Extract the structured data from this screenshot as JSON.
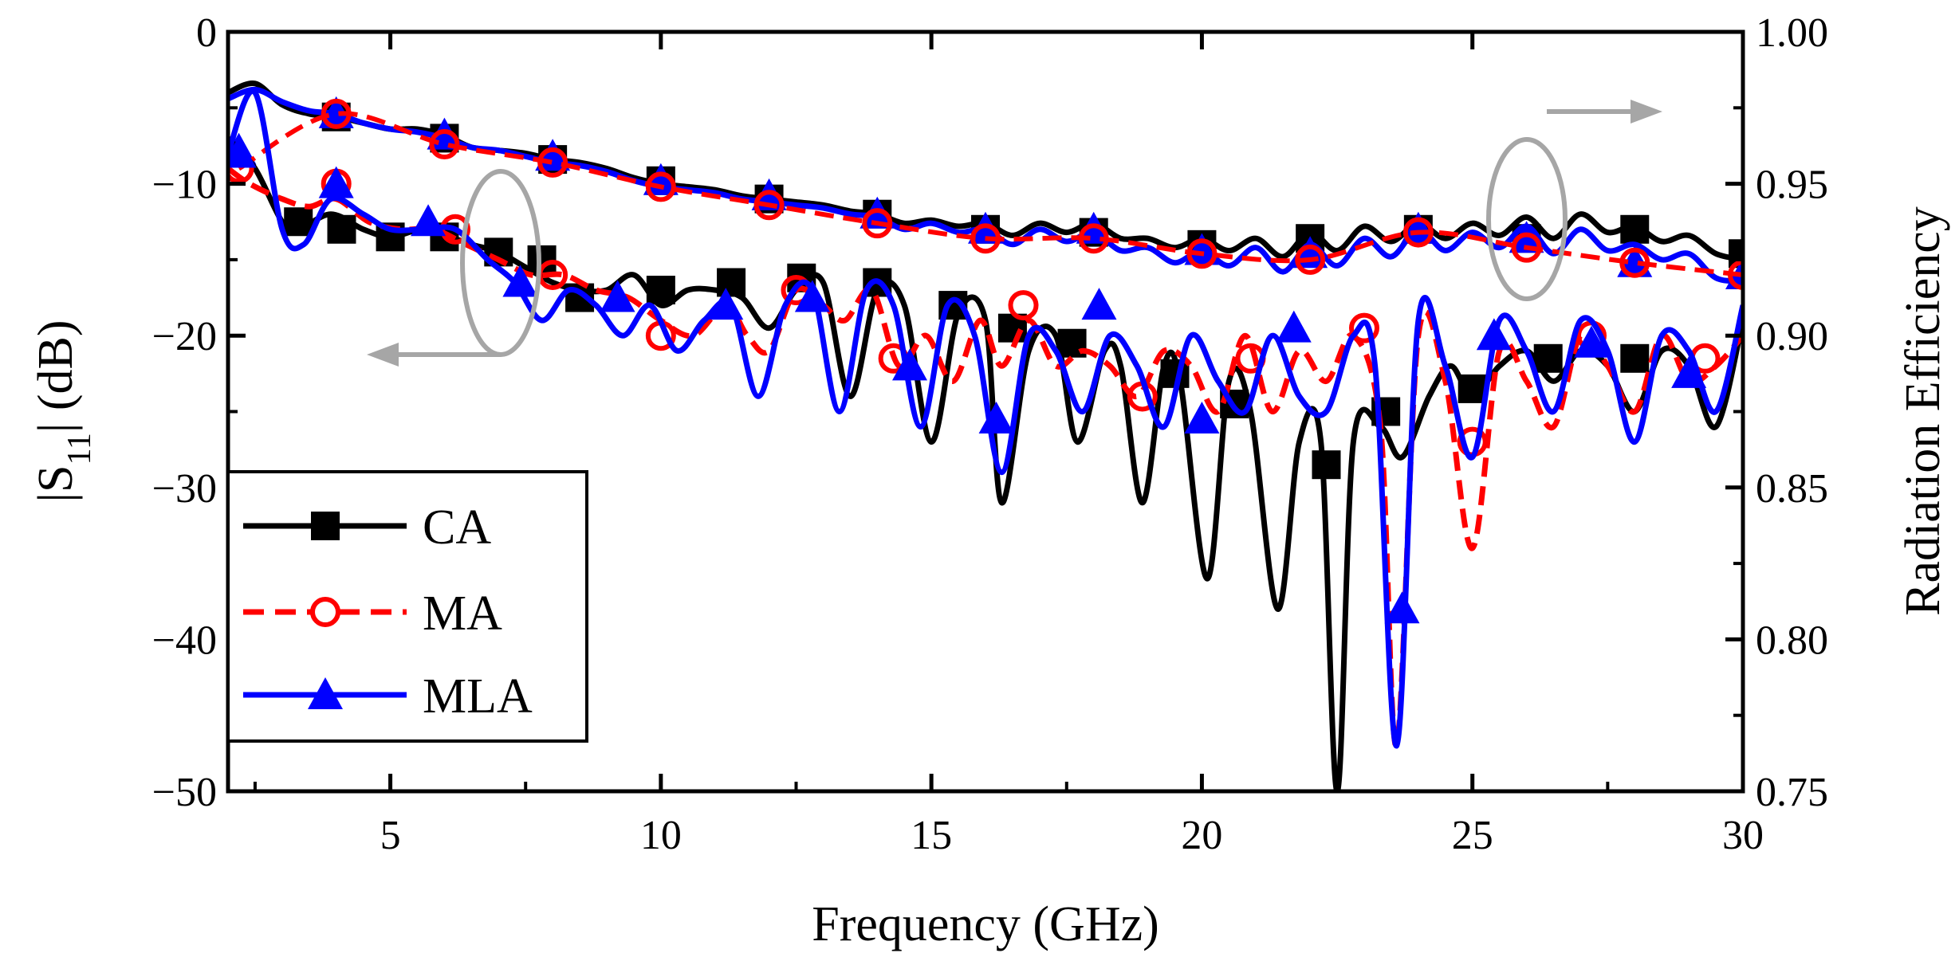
{
  "chart_data": {
    "type": "line",
    "title": "",
    "xlabel": "Frequency (GHz)",
    "ylabel_left": "|S11| (dB)",
    "ylabel_left_main": "|S",
    "ylabel_left_sub": "11",
    "ylabel_left_tail": "| (dB)",
    "ylabel_right": "Radiation Efficiency",
    "xlim": [
      2,
      30
    ],
    "ylim_left": [
      -50,
      0
    ],
    "ylim_right": [
      0.75,
      1.0
    ],
    "x_ticks": [
      5,
      10,
      15,
      20,
      25,
      30
    ],
    "x_tick_labels": [
      "5",
      "10",
      "15",
      "20",
      "25",
      "30"
    ],
    "y_left_ticks": [
      0,
      -10,
      -20,
      -30,
      -40,
      -50
    ],
    "y_left_tick_labels": [
      "0",
      "−10",
      "−20",
      "−30",
      "−40",
      "−50"
    ],
    "y_right_ticks": [
      1.0,
      0.95,
      0.9,
      0.85,
      0.8,
      0.75
    ],
    "y_right_tick_labels": [
      "1.00",
      "0.95",
      "0.90",
      "0.85",
      "0.80",
      "0.75"
    ],
    "legend": {
      "position": "bottom-left",
      "entries": [
        {
          "label": "CA",
          "color": "#000000",
          "marker": "square",
          "dash": "solid"
        },
        {
          "label": "MA",
          "color": "#ff0000",
          "marker": "circle",
          "dash": "dashed"
        },
        {
          "label": "MLA",
          "color": "#0000ff",
          "marker": "triangle",
          "dash": "solid"
        }
      ]
    },
    "annotations": [
      {
        "type": "ellipse-arrow",
        "points_to": "left axis (|S11|)",
        "color": "#a0a0a0"
      },
      {
        "type": "ellipse-arrow",
        "points_to": "right axis (Radiation Efficiency)",
        "color": "#a0a0a0"
      }
    ],
    "series": [
      {
        "name": "CA",
        "axis": "left",
        "color": "#000000",
        "marker": "square",
        "dash": "solid",
        "x": [
          2,
          2.5,
          3,
          3.3,
          3.9,
          4.5,
          5,
          5.6,
          6.1,
          6.5,
          7.0,
          7.5,
          8.0,
          8.5,
          9.0,
          9.5,
          10.0,
          10.5,
          11.0,
          11.5,
          12.0,
          12.5,
          13.0,
          13.5,
          14.0,
          14.5,
          15.0,
          15.5,
          16.0,
          16.3,
          16.8,
          17.3,
          17.7,
          18.2,
          18.5,
          18.9,
          19.3,
          19.6,
          20.1,
          20.5,
          20.9,
          21.4,
          21.8,
          22.2,
          22.5,
          22.8,
          23.3,
          23.7,
          24.2,
          24.6,
          25.0,
          25.5,
          26.0,
          26.5,
          27.0,
          27.5,
          28.0,
          28.5,
          29.0,
          29.5,
          30.0
        ],
        "y": [
          -7,
          -9,
          -12.5,
          -13,
          -12,
          -13,
          -13.5,
          -13,
          -13.5,
          -14,
          -14.5,
          -15.5,
          -16.5,
          -17,
          -17,
          -16,
          -18,
          -17,
          -17,
          -17.5,
          -19.5,
          -17,
          -16.5,
          -24,
          -17,
          -18,
          -27,
          -18.5,
          -19,
          -31,
          -21,
          -20,
          -27,
          -21,
          -22,
          -31,
          -22,
          -23,
          -36,
          -23,
          -25,
          -38,
          -27,
          -27,
          -50,
          -27,
          -26,
          -28,
          -24,
          -22,
          -24,
          -22,
          -21,
          -23,
          -21,
          -22,
          -25,
          -21,
          -22,
          -26,
          -19
        ],
        "markers_x": [
          3.3,
          4.1,
          5.0,
          6.0,
          7.0,
          7.8,
          8.5,
          10.0,
          11.3,
          12.6,
          14.0,
          15.4,
          16.5,
          17.6,
          19.5,
          20.6,
          22.3,
          23.4,
          25.0,
          26.4,
          28.0
        ],
        "markers_y": [
          -12.5,
          -13,
          -13.5,
          -13.5,
          -14.5,
          -15,
          -17.5,
          -17,
          -16.5,
          -16.2,
          -16.5,
          -18,
          -19.5,
          -20.5,
          -22.5,
          -24.5,
          -28.5,
          -25,
          -23.5,
          -21.5,
          -21.5
        ]
      },
      {
        "name": "MA",
        "axis": "left",
        "color": "#ff0000",
        "marker": "circle",
        "dash": "dashed",
        "x": [
          2,
          2.4,
          3.0,
          3.5,
          4.0,
          4.6,
          5.2,
          5.8,
          6.4,
          7.0,
          7.6,
          8.2,
          8.8,
          9.4,
          10.0,
          10.6,
          11.2,
          11.6,
          12.0,
          12.5,
          13.0,
          13.4,
          13.9,
          14.4,
          14.9,
          15.4,
          15.9,
          16.3,
          16.8,
          17.3,
          17.8,
          18.3,
          18.8,
          19.3,
          19.8,
          20.3,
          20.8,
          21.3,
          21.8,
          22.3,
          22.8,
          23.3,
          23.6,
          24.0,
          24.5,
          25.0,
          25.5,
          26.0,
          26.5,
          27.0,
          27.5,
          28.0,
          28.5,
          29.0,
          29.5,
          30.0
        ],
        "y": [
          -9,
          -10,
          -11,
          -11.5,
          -11,
          -12.5,
          -13,
          -13,
          -14,
          -15,
          -16,
          -16,
          -17,
          -17.5,
          -19,
          -20,
          -18,
          -20,
          -21,
          -17,
          -18,
          -19,
          -17,
          -22,
          -20,
          -23,
          -19,
          -22,
          -19,
          -22,
          -21,
          -22,
          -24,
          -21,
          -22,
          -25,
          -20,
          -25,
          -21,
          -23,
          -20,
          -26,
          -47,
          -20,
          -23,
          -34,
          -21,
          -23,
          -26,
          -20,
          -22,
          -25,
          -20,
          -23,
          -22,
          -20
        ],
        "markers_x": [
          2.2,
          4.0,
          6.2,
          8.0,
          10.0,
          12.5,
          14.3,
          16.7,
          18.9,
          20.9,
          23.0,
          25.0,
          27.2,
          29.3
        ],
        "markers_y": [
          -9,
          -10,
          -13,
          -16,
          -20,
          -17,
          -21.5,
          -18,
          -24,
          -21.5,
          -19.5,
          -27,
          -20,
          -21.5
        ],
        "eff_x": [
          2.2,
          4.0,
          6.0,
          8.0,
          10.0,
          12.0,
          14.0,
          16.0,
          18.0,
          20.0,
          22.0,
          24.0,
          26.0,
          28.0,
          30.0
        ],
        "eff_y": [
          0.955,
          0.973,
          0.963,
          0.957,
          0.949,
          0.943,
          0.937,
          0.932,
          0.932,
          0.927,
          0.925,
          0.934,
          0.929,
          0.924,
          0.92
        ]
      },
      {
        "name": "MLA",
        "axis": "left",
        "color": "#0000ff",
        "marker": "triangle",
        "dash": "solid",
        "x": [
          2,
          2.5,
          3.0,
          3.4,
          3.9,
          4.5,
          5.0,
          5.6,
          6.2,
          6.8,
          7.3,
          7.8,
          8.3,
          8.8,
          9.3,
          9.8,
          10.3,
          10.8,
          11.3,
          11.8,
          12.3,
          12.8,
          13.3,
          13.8,
          14.3,
          14.8,
          15.3,
          15.8,
          16.3,
          16.8,
          17.3,
          17.8,
          18.3,
          18.8,
          19.3,
          19.8,
          20.3,
          20.8,
          21.3,
          21.8,
          22.3,
          22.8,
          23.2,
          23.6,
          24.0,
          24.5,
          25.0,
          25.5,
          26.0,
          26.5,
          27.0,
          27.5,
          28.0,
          28.5,
          29.0,
          29.5,
          30.0
        ],
        "y": [
          -8,
          -4,
          -13,
          -14,
          -11,
          -12,
          -13,
          -13,
          -13,
          -15,
          -16.5,
          -19,
          -17,
          -18,
          -20,
          -18,
          -21,
          -19,
          -18,
          -24,
          -18,
          -17,
          -25,
          -17,
          -18,
          -26,
          -18,
          -20,
          -29,
          -20,
          -21,
          -25,
          -20,
          -22,
          -26,
          -20,
          -23,
          -25,
          -20,
          -24,
          -25,
          -20,
          -22,
          -47,
          -19,
          -22,
          -28,
          -19,
          -21,
          -25,
          -19,
          -21,
          -27,
          -20,
          -21,
          -25,
          -18
        ],
        "markers_x": [
          2.2,
          4.0,
          5.7,
          7.4,
          9.2,
          11.2,
          12.8,
          14.6,
          16.2,
          18.1,
          20.0,
          21.7,
          23.7,
          25.4,
          27.2,
          29.0
        ],
        "markers_y": [
          -8,
          -10,
          -12.5,
          -16.5,
          -17.5,
          -18,
          -17.5,
          -22,
          -25.5,
          -18,
          -25.5,
          -19.5,
          -38,
          -20,
          -20.5,
          -22.5
        ]
      }
    ],
    "efficiency_series": [
      {
        "name": "CA",
        "axis": "right",
        "color": "#000000",
        "marker": "square",
        "x": [
          2,
          2.5,
          3,
          3.5,
          4,
          4.5,
          5,
          5.5,
          6,
          6.5,
          7,
          7.5,
          8,
          8.5,
          9,
          9.5,
          10,
          10.5,
          11,
          11.5,
          12,
          12.5,
          13,
          13.5,
          14,
          14.5,
          15,
          15.5,
          16,
          16.5,
          17,
          17.5,
          18,
          18.5,
          19,
          19.5,
          20,
          20.5,
          21,
          21.5,
          22,
          22.5,
          23,
          23.5,
          24,
          24.5,
          25,
          25.5,
          26,
          26.5,
          27,
          27.5,
          28,
          28.5,
          29,
          29.5,
          30
        ],
        "y": [
          0.98,
          0.983,
          0.976,
          0.973,
          0.972,
          0.97,
          0.968,
          0.968,
          0.966,
          0.962,
          0.961,
          0.96,
          0.958,
          0.957,
          0.955,
          0.952,
          0.95,
          0.949,
          0.948,
          0.946,
          0.945,
          0.944,
          0.943,
          0.941,
          0.94,
          0.937,
          0.938,
          0.936,
          0.937,
          0.933,
          0.937,
          0.934,
          0.937,
          0.932,
          0.932,
          0.929,
          0.932,
          0.928,
          0.932,
          0.926,
          0.934,
          0.928,
          0.936,
          0.931,
          0.937,
          0.932,
          0.937,
          0.933,
          0.939,
          0.932,
          0.94,
          0.934,
          0.936,
          0.931,
          0.933,
          0.927,
          0.925
        ],
        "markers_x": [
          4.0,
          6.0,
          8.0,
          10.0,
          12.0,
          14.0,
          16.0,
          18.0,
          20.0,
          22.0,
          24.0,
          26.0,
          28.0,
          30.0
        ],
        "markers_y": [
          0.972,
          0.965,
          0.958,
          0.951,
          0.945,
          0.94,
          0.935,
          0.934,
          0.93,
          0.932,
          0.935,
          0.932,
          0.935,
          0.927
        ]
      },
      {
        "name": "MLA",
        "axis": "right",
        "color": "#0000ff",
        "marker": "triangle",
        "x": [
          2,
          2.5,
          3,
          3.5,
          4,
          4.5,
          5,
          5.5,
          6,
          6.5,
          7,
          7.5,
          8,
          8.5,
          9,
          9.5,
          10,
          10.5,
          11,
          11.5,
          12,
          12.5,
          13,
          13.5,
          14,
          14.5,
          15,
          15.5,
          16,
          16.5,
          17,
          17.5,
          18,
          18.5,
          19,
          19.5,
          20,
          20.5,
          21,
          21.5,
          22,
          22.5,
          23,
          23.5,
          24,
          24.5,
          25,
          25.5,
          26,
          26.5,
          27,
          27.5,
          28,
          28.5,
          29,
          29.5,
          30
        ],
        "y": [
          0.978,
          0.981,
          0.977,
          0.974,
          0.973,
          0.97,
          0.968,
          0.967,
          0.965,
          0.962,
          0.961,
          0.959,
          0.957,
          0.956,
          0.954,
          0.951,
          0.949,
          0.948,
          0.947,
          0.945,
          0.944,
          0.943,
          0.942,
          0.94,
          0.939,
          0.935,
          0.937,
          0.934,
          0.935,
          0.93,
          0.935,
          0.931,
          0.934,
          0.928,
          0.929,
          0.924,
          0.928,
          0.923,
          0.929,
          0.921,
          0.93,
          0.923,
          0.932,
          0.926,
          0.935,
          0.928,
          0.934,
          0.929,
          0.936,
          0.927,
          0.935,
          0.928,
          0.93,
          0.925,
          0.927,
          0.919,
          0.918
        ],
        "markers_x": [
          2.2,
          4.0,
          6.0,
          8.0,
          10.0,
          12.0,
          14.0,
          16.0,
          18.0,
          20.0,
          22.0,
          24.0,
          26.0,
          28.0,
          30.0
        ],
        "markers_y": [
          0.961,
          0.973,
          0.966,
          0.959,
          0.951,
          0.946,
          0.94,
          0.935,
          0.935,
          0.928,
          0.927,
          0.935,
          0.932,
          0.924,
          0.92
        ]
      }
    ]
  }
}
